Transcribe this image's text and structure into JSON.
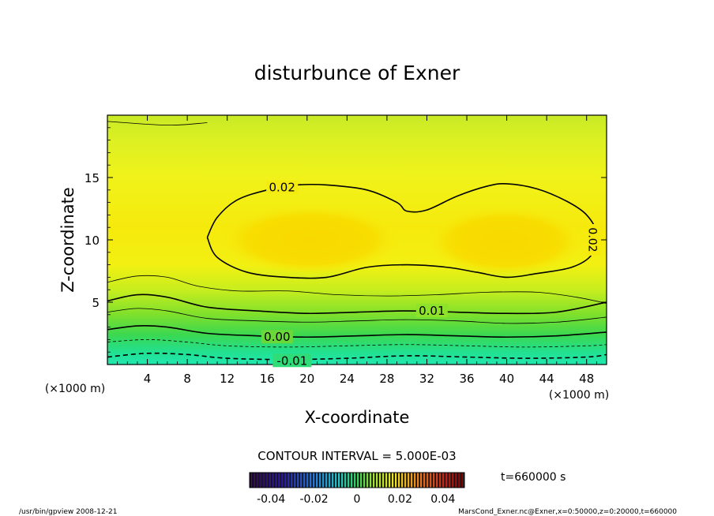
{
  "chart_data": {
    "type": "contour",
    "title": "disturbunce of Exner",
    "xlabel": "X-coordinate",
    "ylabel": "Z-coordinate",
    "x_unit": "(×1000 m)",
    "y_unit": "(×1000 m)",
    "xlim": [
      0,
      50
    ],
    "ylim": [
      0,
      20
    ],
    "x_ticks": [
      4,
      8,
      12,
      16,
      20,
      24,
      28,
      32,
      36,
      40,
      44,
      48
    ],
    "y_ticks": [
      5,
      10,
      15
    ],
    "contour_interval_label": "CONTOUR INTERVAL = 5.000E-03",
    "time_label": "t=660000  s",
    "colorbar_ticks": [
      "-0.04",
      "-0.02",
      "0",
      "0.02",
      "0.04"
    ],
    "colorbar_range": [
      -0.05,
      0.05
    ],
    "contour_labels": [
      {
        "text": "0.02",
        "x": 17.5,
        "z": 14.2
      },
      {
        "text": "0.02",
        "x": 48.6,
        "z": 10.0
      },
      {
        "text": "0.01",
        "x": 32.5,
        "z": 4.3
      },
      {
        "text": "0.00",
        "x": 17.0,
        "z": 2.2
      },
      {
        "text": "-0.01",
        "x": 18.5,
        "z": 0.3
      }
    ],
    "contour_lines": [
      {
        "level": 0.02,
        "style": "thick",
        "points": [
          [
            10,
            10.2
          ],
          [
            11,
            11.8
          ],
          [
            13,
            13.2
          ],
          [
            16,
            14.0
          ],
          [
            19,
            14.4
          ],
          [
            22,
            14.4
          ],
          [
            26,
            14.0
          ],
          [
            29,
            13.0
          ],
          [
            30,
            12.3
          ],
          [
            32,
            12.4
          ],
          [
            35,
            13.5
          ],
          [
            38,
            14.3
          ],
          [
            40,
            14.5
          ],
          [
            43,
            14.1
          ],
          [
            46,
            13.1
          ],
          [
            48,
            12.0
          ],
          [
            49,
            10.5
          ],
          [
            48.5,
            8.8
          ],
          [
            46.5,
            7.8
          ],
          [
            43,
            7.3
          ],
          [
            40,
            7.0
          ],
          [
            37,
            7.4
          ],
          [
            34,
            7.8
          ],
          [
            30,
            8.0
          ],
          [
            26,
            7.8
          ],
          [
            22,
            7.0
          ],
          [
            18,
            7.0
          ],
          [
            14,
            7.4
          ],
          [
            11,
            8.6
          ],
          [
            10,
            10.2
          ]
        ]
      },
      {
        "level": 0.015,
        "style": "thin",
        "points": [
          [
            0,
            6.6
          ],
          [
            3,
            7.1
          ],
          [
            6,
            7.0
          ],
          [
            9,
            6.3
          ],
          [
            13,
            5.9
          ],
          [
            18,
            5.9
          ],
          [
            23,
            5.6
          ],
          [
            28,
            5.5
          ],
          [
            33,
            5.6
          ],
          [
            38,
            5.8
          ],
          [
            43,
            5.8
          ],
          [
            47,
            5.4
          ],
          [
            50,
            4.9
          ]
        ]
      },
      {
        "level": 0.01,
        "style": "thick",
        "points": [
          [
            0,
            5.1
          ],
          [
            3,
            5.6
          ],
          [
            6,
            5.4
          ],
          [
            10,
            4.6
          ],
          [
            15,
            4.3
          ],
          [
            20,
            4.1
          ],
          [
            25,
            4.2
          ],
          [
            30,
            4.3
          ],
          [
            35,
            4.2
          ],
          [
            40,
            4.1
          ],
          [
            45,
            4.2
          ],
          [
            50,
            5.0
          ]
        ]
      },
      {
        "level": 0.005,
        "style": "thin",
        "points": [
          [
            0,
            4.2
          ],
          [
            3,
            4.5
          ],
          [
            6,
            4.3
          ],
          [
            10,
            3.7
          ],
          [
            15,
            3.5
          ],
          [
            20,
            3.4
          ],
          [
            25,
            3.5
          ],
          [
            30,
            3.6
          ],
          [
            35,
            3.5
          ],
          [
            40,
            3.3
          ],
          [
            45,
            3.4
          ],
          [
            50,
            3.8
          ]
        ]
      },
      {
        "level": 0.0,
        "style": "thick",
        "points": [
          [
            0,
            2.8
          ],
          [
            3,
            3.1
          ],
          [
            6,
            3.0
          ],
          [
            10,
            2.5
          ],
          [
            15,
            2.3
          ],
          [
            20,
            2.2
          ],
          [
            25,
            2.3
          ],
          [
            30,
            2.4
          ],
          [
            35,
            2.3
          ],
          [
            40,
            2.2
          ],
          [
            45,
            2.3
          ],
          [
            50,
            2.6
          ]
        ]
      },
      {
        "level": -0.005,
        "style": "thin-dashed",
        "points": [
          [
            0,
            1.8
          ],
          [
            4,
            2.0
          ],
          [
            8,
            1.8
          ],
          [
            12,
            1.5
          ],
          [
            18,
            1.4
          ],
          [
            24,
            1.5
          ],
          [
            30,
            1.6
          ],
          [
            36,
            1.5
          ],
          [
            42,
            1.4
          ],
          [
            48,
            1.5
          ],
          [
            50,
            1.6
          ]
        ]
      },
      {
        "level": -0.01,
        "style": "thick-dashed",
        "points": [
          [
            0,
            0.6
          ],
          [
            4,
            0.9
          ],
          [
            8,
            0.8
          ],
          [
            12,
            0.5
          ],
          [
            18,
            0.4
          ],
          [
            24,
            0.5
          ],
          [
            30,
            0.7
          ],
          [
            36,
            0.6
          ],
          [
            42,
            0.5
          ],
          [
            48,
            0.6
          ],
          [
            50,
            0.8
          ]
        ]
      },
      {
        "level": 0.02,
        "style": "thin",
        "points": [
          [
            0,
            19.5
          ],
          [
            6,
            19.2
          ],
          [
            10,
            19.4
          ]
        ]
      }
    ]
  },
  "footer": {
    "left": "/usr/bin/gpview   2008-12-21",
    "right": "MarsCond_Exner.nc@Exner,x=0:50000,z=0:20000,t=660000"
  }
}
